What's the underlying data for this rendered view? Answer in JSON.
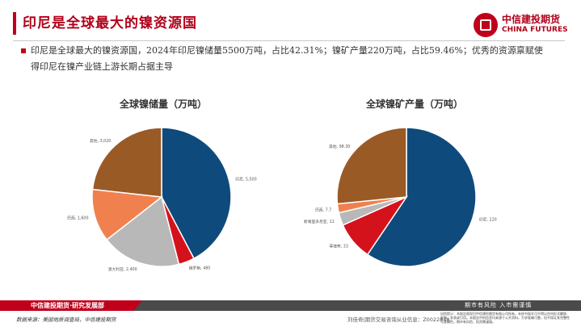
{
  "header": {
    "title": "印尼是全球最大的镍资源国",
    "logo_cn": "中信建投期货",
    "logo_en": "CHINA FUTURES"
  },
  "summary": "印尼是全球最大的镍资源国，2024年印尼镍储量5500万吨，占比42.31%；镍矿产量220万吨，占比59.46%；优秀的资源禀赋使得印尼在镍产业链上游长期占据主导",
  "chart_data": [
    {
      "type": "pie",
      "title": "全球镍储量（万吨）",
      "categories": [
        "印尼",
        "俄罗斯",
        "澳大利亚",
        "巴西",
        "其他"
      ],
      "values": [
        5500,
        480,
        2400,
        1600,
        3020
      ],
      "value_labels": [
        "5,500",
        "480",
        "2,400",
        "1,600",
        "3,020"
      ],
      "colors": [
        "#0f4a7c",
        "#d4121c",
        "#b8b8b8",
        "#f0814f",
        "#9a5a26"
      ]
    },
    {
      "type": "pie",
      "title": "全球镍矿产量（万吨）",
      "categories": [
        "印尼",
        "菲律宾",
        "新喀里多尼亚",
        "巴西",
        "其他"
      ],
      "values": [
        220,
        33,
        11,
        7.7,
        98.3
      ],
      "value_labels": [
        "220",
        "33",
        "11",
        "7.7",
        "98.30"
      ],
      "colors": [
        "#0f4a7c",
        "#d4121c",
        "#b8b8b8",
        "#f0814f",
        "#9a5a26"
      ]
    }
  ],
  "footer": {
    "brand": "中信建投期货·研究发展部",
    "slogan": "期市有风险  入市需谨慎",
    "source": "数据来源：美国地质调查局，中信建投期货",
    "analyst": "刘佳奇|期货交易咨询从业信息：Z0022848",
    "disclaimer": "风险提示：本报告版权归中信建投期货有限公司所有，未经书面许可不得以任何形式翻版、复制、发表或引用。本报告中的信息均来源于公开资料，力求准确可靠，但不保证其完整性与准确性。期市有风险，投资需谨慎。"
  }
}
